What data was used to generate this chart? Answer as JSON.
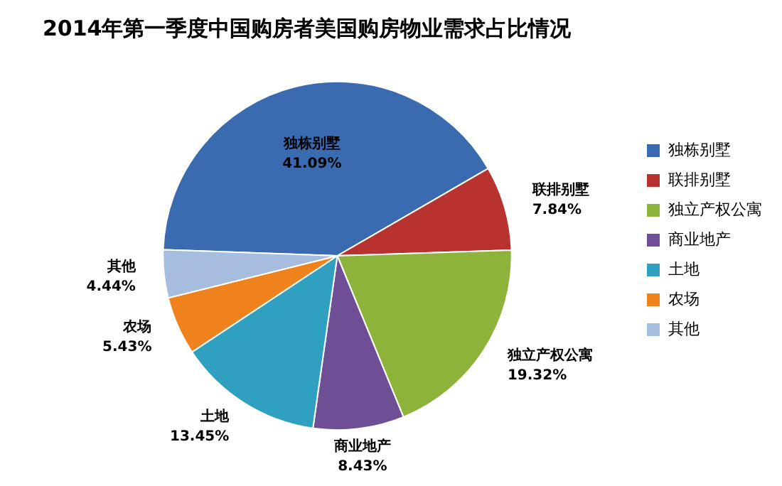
{
  "chart_data": {
    "type": "pie",
    "title": "2014年第一季度中国购房者美国购房物业需求占比情况",
    "categories": [
      "独栋别墅",
      "联排别墅",
      "独立产权公寓",
      "商业地产",
      "土地",
      "农场",
      "其他"
    ],
    "values": [
      41.09,
      7.84,
      19.32,
      8.43,
      13.45,
      5.43,
      4.44
    ],
    "value_labels": [
      "41.09%",
      "7.84%",
      "19.32%",
      "8.43%",
      "13.45%",
      "5.43%",
      "4.44%"
    ],
    "colors": [
      "#3a6bb0",
      "#b8322f",
      "#8db33a",
      "#6e4f96",
      "#2fa0bf",
      "#f0821e",
      "#a6bde0"
    ],
    "legend": "right"
  }
}
